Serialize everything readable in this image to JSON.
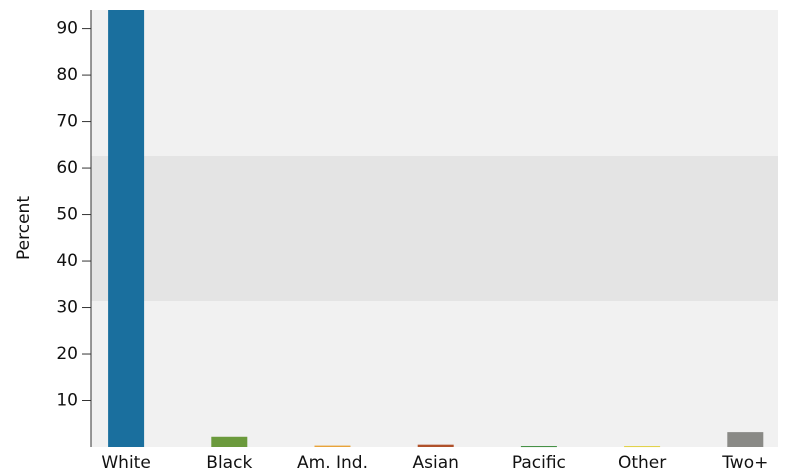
{
  "chart_data": {
    "type": "bar",
    "y_label": "Percent",
    "categories": [
      "White",
      "Black",
      "Am. Ind.",
      "Asian",
      "Pacific",
      "Other",
      "Two+"
    ],
    "values": [
      94,
      2.2,
      0.3,
      0.5,
      0.2,
      0.2,
      3.2
    ],
    "colors": [
      "#1a6f9e",
      "#6b9a3c",
      "#e8a33a",
      "#b0512a",
      "#3a8a3a",
      "#e0d040",
      "#8a8a86"
    ],
    "ylim": [
      0,
      94
    ],
    "yticks": [
      10,
      20,
      30,
      40,
      50,
      60,
      70,
      80,
      90
    ]
  }
}
